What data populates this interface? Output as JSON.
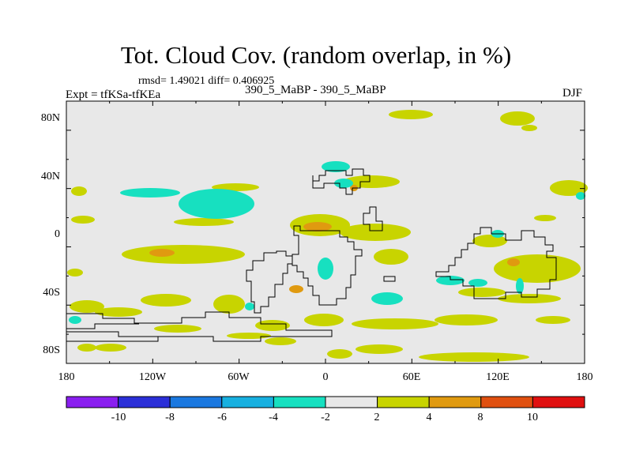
{
  "title": "Tot. Cloud Cov. (random overlap, in %)",
  "stats_text": "rmsd= 1.49021  diff= 0.406925",
  "experiment_text": "Expt = tfKSa-tfKEa",
  "period_text": "390_5_MaBP - 390_5_MaBP",
  "season_text": "DJF",
  "lon_ticks": [
    "180",
    "120W",
    "60W",
    "0",
    "60E",
    "120E",
    "180"
  ],
  "lat_ticks": [
    "80N",
    "40N",
    "0",
    "40S",
    "80S"
  ],
  "colorbar": {
    "colors": [
      "#8a1ff0",
      "#2b2fd8",
      "#1a78e0",
      "#17b0e0",
      "#17e0c0",
      "#e8e8e8",
      "#c8d400",
      "#e09a10",
      "#e05010",
      "#e01010"
    ],
    "labels": [
      "-10",
      "-8",
      "-6",
      "-4",
      "-2",
      "2",
      "4",
      "8",
      "10"
    ]
  },
  "colors": {
    "background": "#e8e8e8",
    "positive_2_4": "#c8d400",
    "positive_4_8": "#e09a10",
    "negative_2_4": "#17e0c0"
  }
}
